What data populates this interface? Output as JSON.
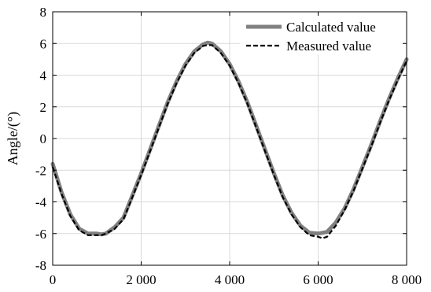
{
  "chart_data": {
    "type": "line",
    "title": "",
    "xlabel": "",
    "ylabel": "Angle/(°)",
    "xlim": [
      0,
      8000
    ],
    "ylim": [
      -8,
      8
    ],
    "grid": true,
    "legend_position": "top-right",
    "x_ticks": [
      0,
      2000,
      4000,
      6000,
      8000
    ],
    "x_tick_labels": [
      "0",
      "2 000",
      "4 000",
      "6 000",
      "8 000"
    ],
    "y_ticks": [
      8,
      6,
      4,
      2,
      0,
      -2,
      -4,
      -6,
      -8
    ],
    "y_tick_labels": [
      "8",
      "6",
      "4",
      "2",
      "0",
      "-2",
      "-4",
      "-6",
      "-8"
    ],
    "series": [
      {
        "name": "Calculated value",
        "style": "solid",
        "color": "#808080",
        "x": [
          0,
          200,
          400,
          600,
          800,
          1000,
          1100,
          1200,
          1400,
          1600,
          1800,
          2000,
          2200,
          2400,
          2600,
          2800,
          3000,
          3200,
          3400,
          3500,
          3600,
          3800,
          4000,
          4200,
          4400,
          4600,
          4800,
          5000,
          5200,
          5400,
          5600,
          5800,
          6000,
          6200,
          6400,
          6600,
          6800,
          7000,
          7200,
          7400,
          7600,
          7800,
          8000
        ],
        "y": [
          -1.6,
          -3.4,
          -4.8,
          -5.7,
          -6.0,
          -6.0,
          -6.05,
          -6.0,
          -5.6,
          -5.0,
          -3.6,
          -2.2,
          -0.7,
          0.8,
          2.3,
          3.6,
          4.7,
          5.5,
          5.95,
          6.05,
          6.0,
          5.5,
          4.7,
          3.6,
          2.3,
          0.8,
          -0.7,
          -2.2,
          -3.6,
          -4.7,
          -5.5,
          -5.95,
          -6.0,
          -5.9,
          -5.3,
          -4.4,
          -3.2,
          -1.8,
          -0.4,
          1.1,
          2.5,
          3.8,
          5.0
        ]
      },
      {
        "name": "Measured value",
        "style": "dashed",
        "color": "#000000",
        "x": [
          0,
          200,
          400,
          600,
          800,
          1000,
          1100,
          1200,
          1400,
          1600,
          1800,
          2000,
          2200,
          2400,
          2600,
          2800,
          3000,
          3200,
          3400,
          3500,
          3600,
          3800,
          4000,
          4200,
          4400,
          4600,
          4800,
          5000,
          5200,
          5400,
          5600,
          5800,
          6000,
          6100,
          6200,
          6400,
          6600,
          6800,
          7000,
          7200,
          7400,
          7600,
          7800,
          8000
        ],
        "y": [
          -1.8,
          -3.5,
          -4.9,
          -5.8,
          -6.1,
          -6.1,
          -6.1,
          -6.0,
          -5.7,
          -5.1,
          -3.7,
          -2.3,
          -0.8,
          0.7,
          2.2,
          3.5,
          4.6,
          5.4,
          5.85,
          5.9,
          5.9,
          5.4,
          4.6,
          3.5,
          2.2,
          0.7,
          -0.8,
          -2.3,
          -3.7,
          -4.8,
          -5.6,
          -6.1,
          -6.2,
          -6.3,
          -6.2,
          -5.5,
          -4.5,
          -3.3,
          -1.9,
          -0.5,
          1.0,
          2.4,
          3.7,
          4.9
        ]
      }
    ]
  }
}
